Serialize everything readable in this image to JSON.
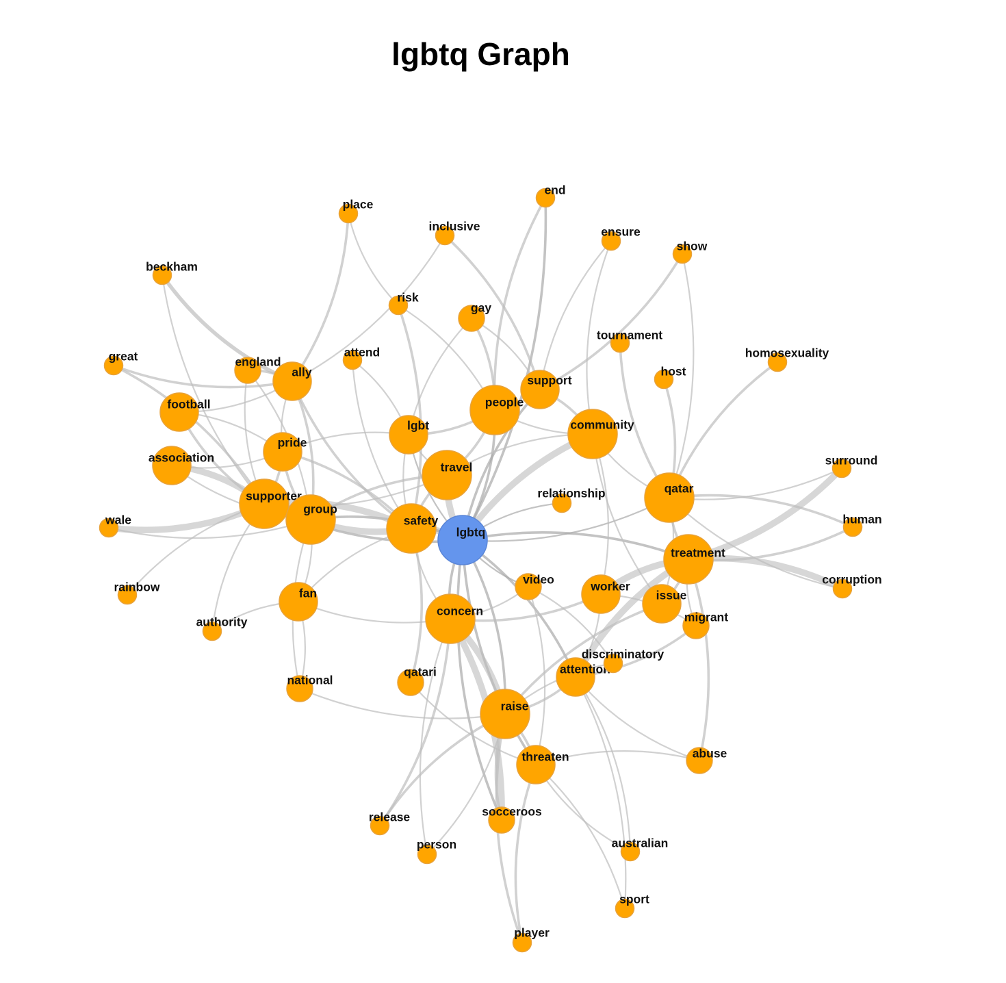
{
  "title": "lgbtq Graph",
  "colors": {
    "node": "#FFA500",
    "node_stroke": "#e8a23a",
    "center_node": "#6495ED",
    "center_stroke": "#5a86d8",
    "edge": "#bdbdbd",
    "edge_center": "#a9a9a9"
  },
  "graph": {
    "center": "lgbtq",
    "nodes": [
      {
        "id": "lgbtq",
        "size": "large",
        "color": "center"
      },
      {
        "id": "safety",
        "size": "large"
      },
      {
        "id": "travel",
        "size": "large"
      },
      {
        "id": "people",
        "size": "large"
      },
      {
        "id": "community",
        "size": "large"
      },
      {
        "id": "concern",
        "size": "large"
      },
      {
        "id": "qatar",
        "size": "large"
      },
      {
        "id": "treatment",
        "size": "large"
      },
      {
        "id": "raise",
        "size": "large"
      },
      {
        "id": "supporter",
        "size": "large"
      },
      {
        "id": "group",
        "size": "large"
      },
      {
        "id": "pride",
        "size": "medium"
      },
      {
        "id": "ally",
        "size": "medium"
      },
      {
        "id": "support",
        "size": "medium"
      },
      {
        "id": "attention",
        "size": "medium"
      },
      {
        "id": "worker",
        "size": "medium"
      },
      {
        "id": "threaten",
        "size": "medium"
      },
      {
        "id": "lgbt",
        "size": "medium"
      },
      {
        "id": "association",
        "size": "medium"
      },
      {
        "id": "football",
        "size": "medium"
      },
      {
        "id": "fan",
        "size": "medium"
      },
      {
        "id": "issue",
        "size": "medium"
      },
      {
        "id": "england",
        "size": "small"
      },
      {
        "id": "migrant",
        "size": "small"
      },
      {
        "id": "abuse",
        "size": "small"
      },
      {
        "id": "video",
        "size": "small"
      },
      {
        "id": "socceroos",
        "size": "small"
      },
      {
        "id": "national",
        "size": "small"
      },
      {
        "id": "qatari",
        "size": "small"
      },
      {
        "id": "gay",
        "size": "small"
      },
      {
        "id": "place",
        "size": "tiny"
      },
      {
        "id": "inclusive",
        "size": "tiny"
      },
      {
        "id": "end",
        "size": "tiny"
      },
      {
        "id": "ensure",
        "size": "tiny"
      },
      {
        "id": "show",
        "size": "tiny"
      },
      {
        "id": "beckham",
        "size": "tiny"
      },
      {
        "id": "risk",
        "size": "tiny"
      },
      {
        "id": "attend",
        "size": "tiny"
      },
      {
        "id": "great",
        "size": "tiny"
      },
      {
        "id": "tournament",
        "size": "tiny"
      },
      {
        "id": "host",
        "size": "tiny"
      },
      {
        "id": "homosexuality",
        "size": "tiny"
      },
      {
        "id": "surround",
        "size": "tiny"
      },
      {
        "id": "human",
        "size": "tiny"
      },
      {
        "id": "corruption",
        "size": "tiny"
      },
      {
        "id": "relationship",
        "size": "tiny"
      },
      {
        "id": "wale",
        "size": "tiny"
      },
      {
        "id": "rainbow",
        "size": "tiny"
      },
      {
        "id": "authority",
        "size": "tiny"
      },
      {
        "id": "discriminatory",
        "size": "tiny"
      },
      {
        "id": "release",
        "size": "tiny"
      },
      {
        "id": "person",
        "size": "tiny"
      },
      {
        "id": "australian",
        "size": "tiny"
      },
      {
        "id": "sport",
        "size": "tiny"
      },
      {
        "id": "player",
        "size": "tiny"
      }
    ],
    "edges": [
      [
        "lgbtq",
        "safety",
        "heavy"
      ],
      [
        "lgbtq",
        "travel",
        "heavy"
      ],
      [
        "lgbtq",
        "people",
        "medium"
      ],
      [
        "lgbtq",
        "community",
        "heavy"
      ],
      [
        "lgbtq",
        "concern",
        "medium"
      ],
      [
        "lgbtq",
        "raise",
        "medium"
      ],
      [
        "lgbtq",
        "threaten",
        "medium"
      ],
      [
        "lgbtq",
        "treatment",
        "medium"
      ],
      [
        "lgbtq",
        "qatar",
        "thin"
      ],
      [
        "lgbtq",
        "support",
        "medium"
      ],
      [
        "lgbtq",
        "socceroos",
        "medium"
      ],
      [
        "lgbtq",
        "attention",
        "medium"
      ],
      [
        "lgbtq",
        "video",
        "thin"
      ],
      [
        "lgbtq",
        "relationship",
        "thin"
      ],
      [
        "lgbtq",
        "group",
        "medium"
      ],
      [
        "lgbtq",
        "supporter",
        "medium"
      ],
      [
        "lgbtq",
        "end",
        "medium"
      ],
      [
        "lgbtq",
        "lgbt",
        "thin"
      ],
      [
        "treatment",
        "surround",
        "heavy"
      ],
      [
        "treatment",
        "corruption",
        "heavy"
      ],
      [
        "treatment",
        "human",
        "medium"
      ],
      [
        "treatment",
        "abuse",
        "medium"
      ],
      [
        "treatment",
        "worker",
        "heavy"
      ],
      [
        "treatment",
        "issue",
        "medium"
      ],
      [
        "treatment",
        "migrant",
        "thin"
      ],
      [
        "treatment",
        "qatar",
        "medium"
      ],
      [
        "treatment",
        "attention",
        "heavy"
      ],
      [
        "qatar",
        "homosexuality",
        "medium"
      ],
      [
        "qatar",
        "host",
        "medium"
      ],
      [
        "qatar",
        "tournament",
        "medium"
      ],
      [
        "qatar",
        "surround",
        "thin"
      ],
      [
        "qatar",
        "human",
        "medium"
      ],
      [
        "qatar",
        "corruption",
        "thin"
      ],
      [
        "qatar",
        "community",
        "thin"
      ],
      [
        "qatar",
        "show",
        "thin"
      ],
      [
        "qatar",
        "issue",
        "thin"
      ],
      [
        "community",
        "support",
        "medium"
      ],
      [
        "community",
        "people",
        "thin"
      ],
      [
        "community",
        "travel",
        "thin"
      ],
      [
        "community",
        "worker",
        "thin"
      ],
      [
        "community",
        "issue",
        "thin"
      ],
      [
        "community",
        "ensure",
        "thin"
      ],
      [
        "support",
        "show",
        "medium"
      ],
      [
        "support",
        "ensure",
        "thin"
      ],
      [
        "support",
        "gay",
        "thin"
      ],
      [
        "support",
        "people",
        "thin"
      ],
      [
        "support",
        "inclusive",
        "medium"
      ],
      [
        "people",
        "end",
        "medium"
      ],
      [
        "people",
        "gay",
        "medium"
      ],
      [
        "people",
        "lgbt",
        "medium"
      ],
      [
        "people",
        "risk",
        "thin"
      ],
      [
        "people",
        "travel",
        "medium"
      ],
      [
        "travel",
        "safety",
        "medium"
      ],
      [
        "travel",
        "lgbt",
        "thin"
      ],
      [
        "travel",
        "group",
        "medium"
      ],
      [
        "travel",
        "supporter",
        "thin"
      ],
      [
        "safety",
        "supporter",
        "heavy"
      ],
      [
        "safety",
        "group",
        "heavy"
      ],
      [
        "safety",
        "pride",
        "medium"
      ],
      [
        "safety",
        "ally",
        "medium"
      ],
      [
        "safety",
        "concern",
        "thin"
      ],
      [
        "safety",
        "qatari",
        "medium"
      ],
      [
        "safety",
        "risk",
        "medium"
      ],
      [
        "safety",
        "attend",
        "thin"
      ],
      [
        "safety",
        "fan",
        "thin"
      ],
      [
        "safety",
        "lgbt",
        "thin"
      ],
      [
        "supporter",
        "great",
        "medium"
      ],
      [
        "supporter",
        "wale",
        "heavy"
      ],
      [
        "supporter",
        "association",
        "heavy"
      ],
      [
        "supporter",
        "football",
        "medium"
      ],
      [
        "supporter",
        "rainbow",
        "thin"
      ],
      [
        "supporter",
        "beckham",
        "thin"
      ],
      [
        "supporter",
        "authority",
        "thin"
      ],
      [
        "supporter",
        "england",
        "thin"
      ],
      [
        "supporter",
        "pride",
        "medium"
      ],
      [
        "group",
        "pride",
        "medium"
      ],
      [
        "group",
        "ally",
        "medium"
      ],
      [
        "group",
        "fan",
        "thin"
      ],
      [
        "group",
        "national",
        "thin"
      ],
      [
        "group",
        "association",
        "thin"
      ],
      [
        "group",
        "england",
        "thin"
      ],
      [
        "group",
        "wale",
        "thin"
      ],
      [
        "ally",
        "england",
        "medium"
      ],
      [
        "ally",
        "great",
        "medium"
      ],
      [
        "ally",
        "place",
        "medium"
      ],
      [
        "ally",
        "beckham",
        "thick"
      ],
      [
        "ally",
        "pride",
        "thin"
      ],
      [
        "ally",
        "football",
        "thin"
      ],
      [
        "ally",
        "inclusive",
        "thin"
      ],
      [
        "pride",
        "association",
        "thin"
      ],
      [
        "pride",
        "football",
        "thin"
      ],
      [
        "pride",
        "lgbt",
        "thin"
      ],
      [
        "fan",
        "authority",
        "thin"
      ],
      [
        "fan",
        "national",
        "thin"
      ],
      [
        "fan",
        "concern",
        "thin"
      ],
      [
        "concern",
        "raise",
        "heavy"
      ],
      [
        "concern",
        "worker",
        "medium"
      ],
      [
        "concern",
        "release",
        "medium"
      ],
      [
        "concern",
        "person",
        "thin"
      ],
      [
        "concern",
        "socceroos",
        "heavy"
      ],
      [
        "concern",
        "video",
        "thin"
      ],
      [
        "raise",
        "national",
        "thin"
      ],
      [
        "raise",
        "attention",
        "medium"
      ],
      [
        "raise",
        "issue",
        "medium"
      ],
      [
        "raise",
        "release",
        "medium"
      ],
      [
        "raise",
        "person",
        "thin"
      ],
      [
        "raise",
        "socceroos",
        "medium"
      ],
      [
        "raise",
        "threaten",
        "medium"
      ],
      [
        "raise",
        "player",
        "medium"
      ],
      [
        "raise",
        "discriminatory",
        "thin"
      ],
      [
        "attention",
        "abuse",
        "thin"
      ],
      [
        "attention",
        "australian",
        "thin"
      ],
      [
        "attention",
        "migrant",
        "medium"
      ],
      [
        "attention",
        "sport",
        "thin"
      ],
      [
        "attention",
        "worker",
        "thin"
      ],
      [
        "threaten",
        "abuse",
        "thin"
      ],
      [
        "threaten",
        "australian",
        "thin"
      ],
      [
        "threaten",
        "sport",
        "thin"
      ],
      [
        "threaten",
        "player",
        "medium"
      ],
      [
        "threaten",
        "qatari",
        "thin"
      ],
      [
        "threaten",
        "video",
        "thin"
      ],
      [
        "worker",
        "migrant",
        "thin"
      ],
      [
        "place",
        "risk",
        "thin"
      ],
      [
        "lgbt",
        "gay",
        "thin"
      ],
      [
        "lgbt",
        "attend",
        "thin"
      ],
      [
        "video",
        "discriminatory",
        "thin"
      ]
    ]
  }
}
